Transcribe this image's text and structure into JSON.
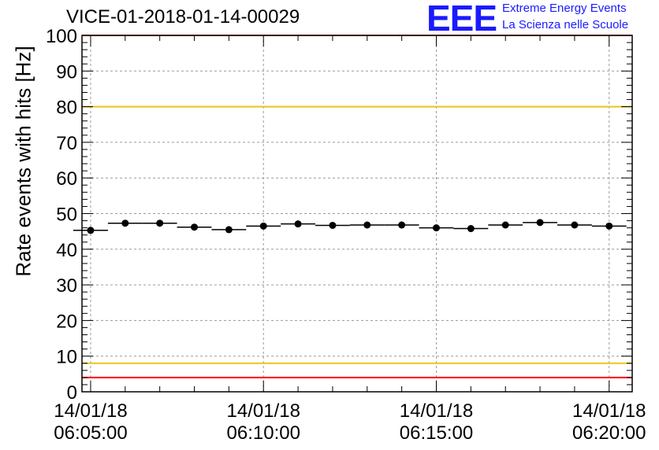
{
  "header": {
    "run_id": "VICE-01-2018-01-14-00029",
    "logo_text": "EEE",
    "logo_line1": "Extreme Energy Events",
    "logo_line2": "La Scienza nelle Scuole"
  },
  "colors": {
    "upper_limit": "#e8c51a",
    "lower_limit": "#e8c51a",
    "frame_limit": "#ff0000",
    "logo": "#1a1aff",
    "marker": "#000000"
  },
  "chart_data": {
    "type": "scatter",
    "title": "VICE-01-2018-01-14-00029",
    "xlabel": "",
    "ylabel": "Rate events with hits [Hz]",
    "ylim": [
      0,
      100
    ],
    "yticks": [
      0,
      10,
      20,
      30,
      40,
      50,
      60,
      70,
      80,
      90,
      100
    ],
    "xlim": [
      "2018-01-14 06:04:45",
      "2018-01-14 06:20:40"
    ],
    "xticks": [
      {
        "date": "14/01/18",
        "time": "06:05:00"
      },
      {
        "date": "14/01/18",
        "time": "06:10:00"
      },
      {
        "date": "14/01/18",
        "time": "06:15:00"
      },
      {
        "date": "14/01/18",
        "time": "06:20:00"
      }
    ],
    "grid": true,
    "reference_lines": [
      {
        "y": 80,
        "color": "#e8c51a"
      },
      {
        "y": 8,
        "color": "#e8c51a"
      },
      {
        "y": 4,
        "color": "#ff0000"
      },
      {
        "y": 100,
        "color": "#ff0000"
      }
    ],
    "series": [
      {
        "x": [
          "06:05:00",
          "06:06:00",
          "06:07:00",
          "06:08:00",
          "06:09:00",
          "06:10:00",
          "06:11:00",
          "06:12:00",
          "06:13:00",
          "06:14:00",
          "06:15:00",
          "06:16:00",
          "06:17:00",
          "06:18:00",
          "06:19:00",
          "06:20:00"
        ],
        "values": [
          45.3,
          47.3,
          47.3,
          46.2,
          45.5,
          46.5,
          47.1,
          46.7,
          46.8,
          46.8,
          46.0,
          45.8,
          46.8,
          47.5,
          46.8,
          46.5
        ]
      }
    ]
  }
}
